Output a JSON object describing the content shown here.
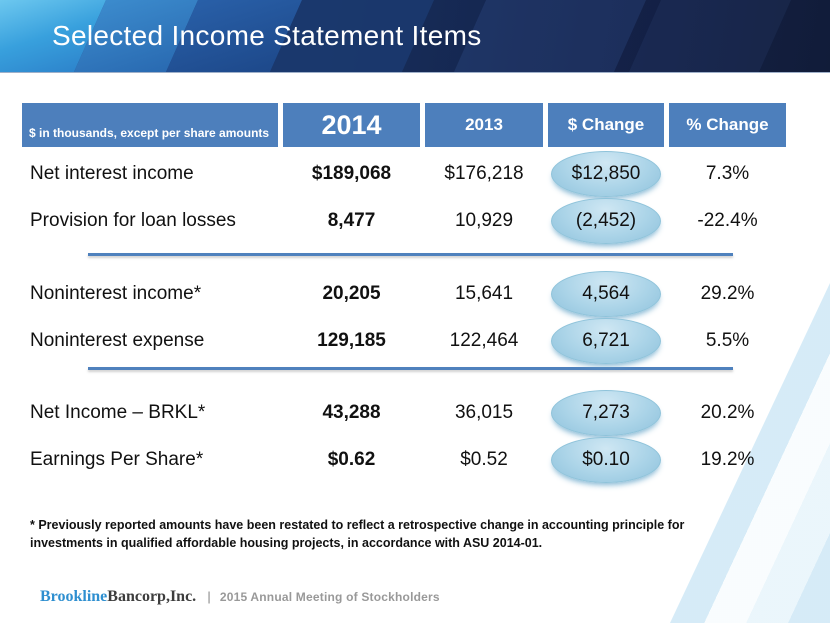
{
  "title_bar": {
    "title": "Selected Income Statement Items"
  },
  "table": {
    "note": "$ in thousands, except per share amounts",
    "col_2014": "2014",
    "col_2013": "2013",
    "col_dollar_change": "$ Change",
    "col_pct_change": "% Change",
    "rows": [
      {
        "label": "Net interest income",
        "v2014": "$189,068",
        "v2013": "$176,218",
        "change": "$12,850",
        "pct": "7.3%"
      },
      {
        "label": "Provision for loan losses",
        "v2014": "8,477",
        "v2013": "10,929",
        "change": "(2,452)",
        "pct": "-22.4%"
      },
      {
        "label": "Noninterest income*",
        "v2014": "20,205",
        "v2013": "15,641",
        "change": "4,564",
        "pct": "29.2%"
      },
      {
        "label": "Noninterest expense",
        "v2014": "129,185",
        "v2013": "122,464",
        "change": "6,721",
        "pct": "5.5%"
      },
      {
        "label": "Net Income – BRKL*",
        "v2014": "43,288",
        "v2013": "36,015",
        "change": "7,273",
        "pct": "20.2%"
      },
      {
        "label": "Earnings Per Share*",
        "v2014": "$0.62",
        "v2013": "$0.52",
        "change": "$0.10",
        "pct": "19.2%"
      }
    ]
  },
  "footnote": "* Previously reported amounts have been restated to reflect a retrospective change in accounting principle for investments in qualified affordable housing projects, in accordance with ASU 2014-01.",
  "footer": {
    "brand_blue": "Brookline",
    "brand_dark": "Bancorp,Inc.",
    "separator": "|",
    "caption": "2015 Annual Meeting of Stockholders"
  },
  "colors": {
    "header_navy": "#16294f",
    "table_header_blue": "#4d7fbc",
    "divider_blue": "#4f81bd",
    "ellipse_fill": "#a9d3e7",
    "brand_blue": "#2e8fd0"
  }
}
